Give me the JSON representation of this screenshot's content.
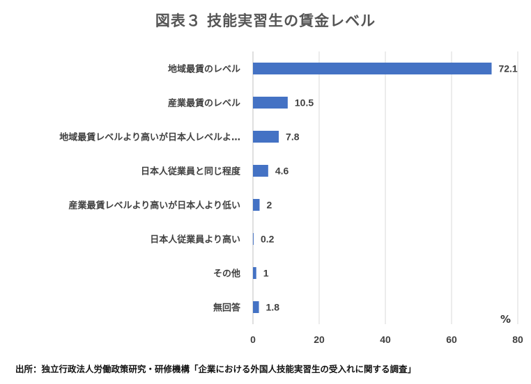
{
  "chart_data": {
    "type": "bar",
    "orientation": "horizontal",
    "title": "図表３ 技能実習生の賃金レベル",
    "categories": [
      "地域最賃のレベル",
      "産業最賃のレベル",
      "地域最賃レベルより高いが日本人レベルよ…",
      "日本人従業員と同じ程度",
      "産業最賃レベルより高いが日本人より低い",
      "日本人従業員より高い",
      "その他",
      "無回答"
    ],
    "values": [
      72.1,
      10.5,
      7.8,
      4.6,
      2,
      0.2,
      1,
      1.8
    ],
    "value_labels": [
      "72.1",
      "10.5",
      "7.8",
      "4.6",
      "2",
      "0.2",
      "1",
      "1.8"
    ],
    "xlim": [
      0,
      80
    ],
    "xticks": [
      0,
      20,
      40,
      60,
      80
    ],
    "xtick_labels": [
      "0",
      "20",
      "40",
      "60",
      "80"
    ],
    "unit": "%",
    "grid": true,
    "bar_color": "#4472c4",
    "source": "出所：独立行政法人労働政策研究・研修機構「企業における外国人技能実習生の受入れに関する調査」"
  }
}
